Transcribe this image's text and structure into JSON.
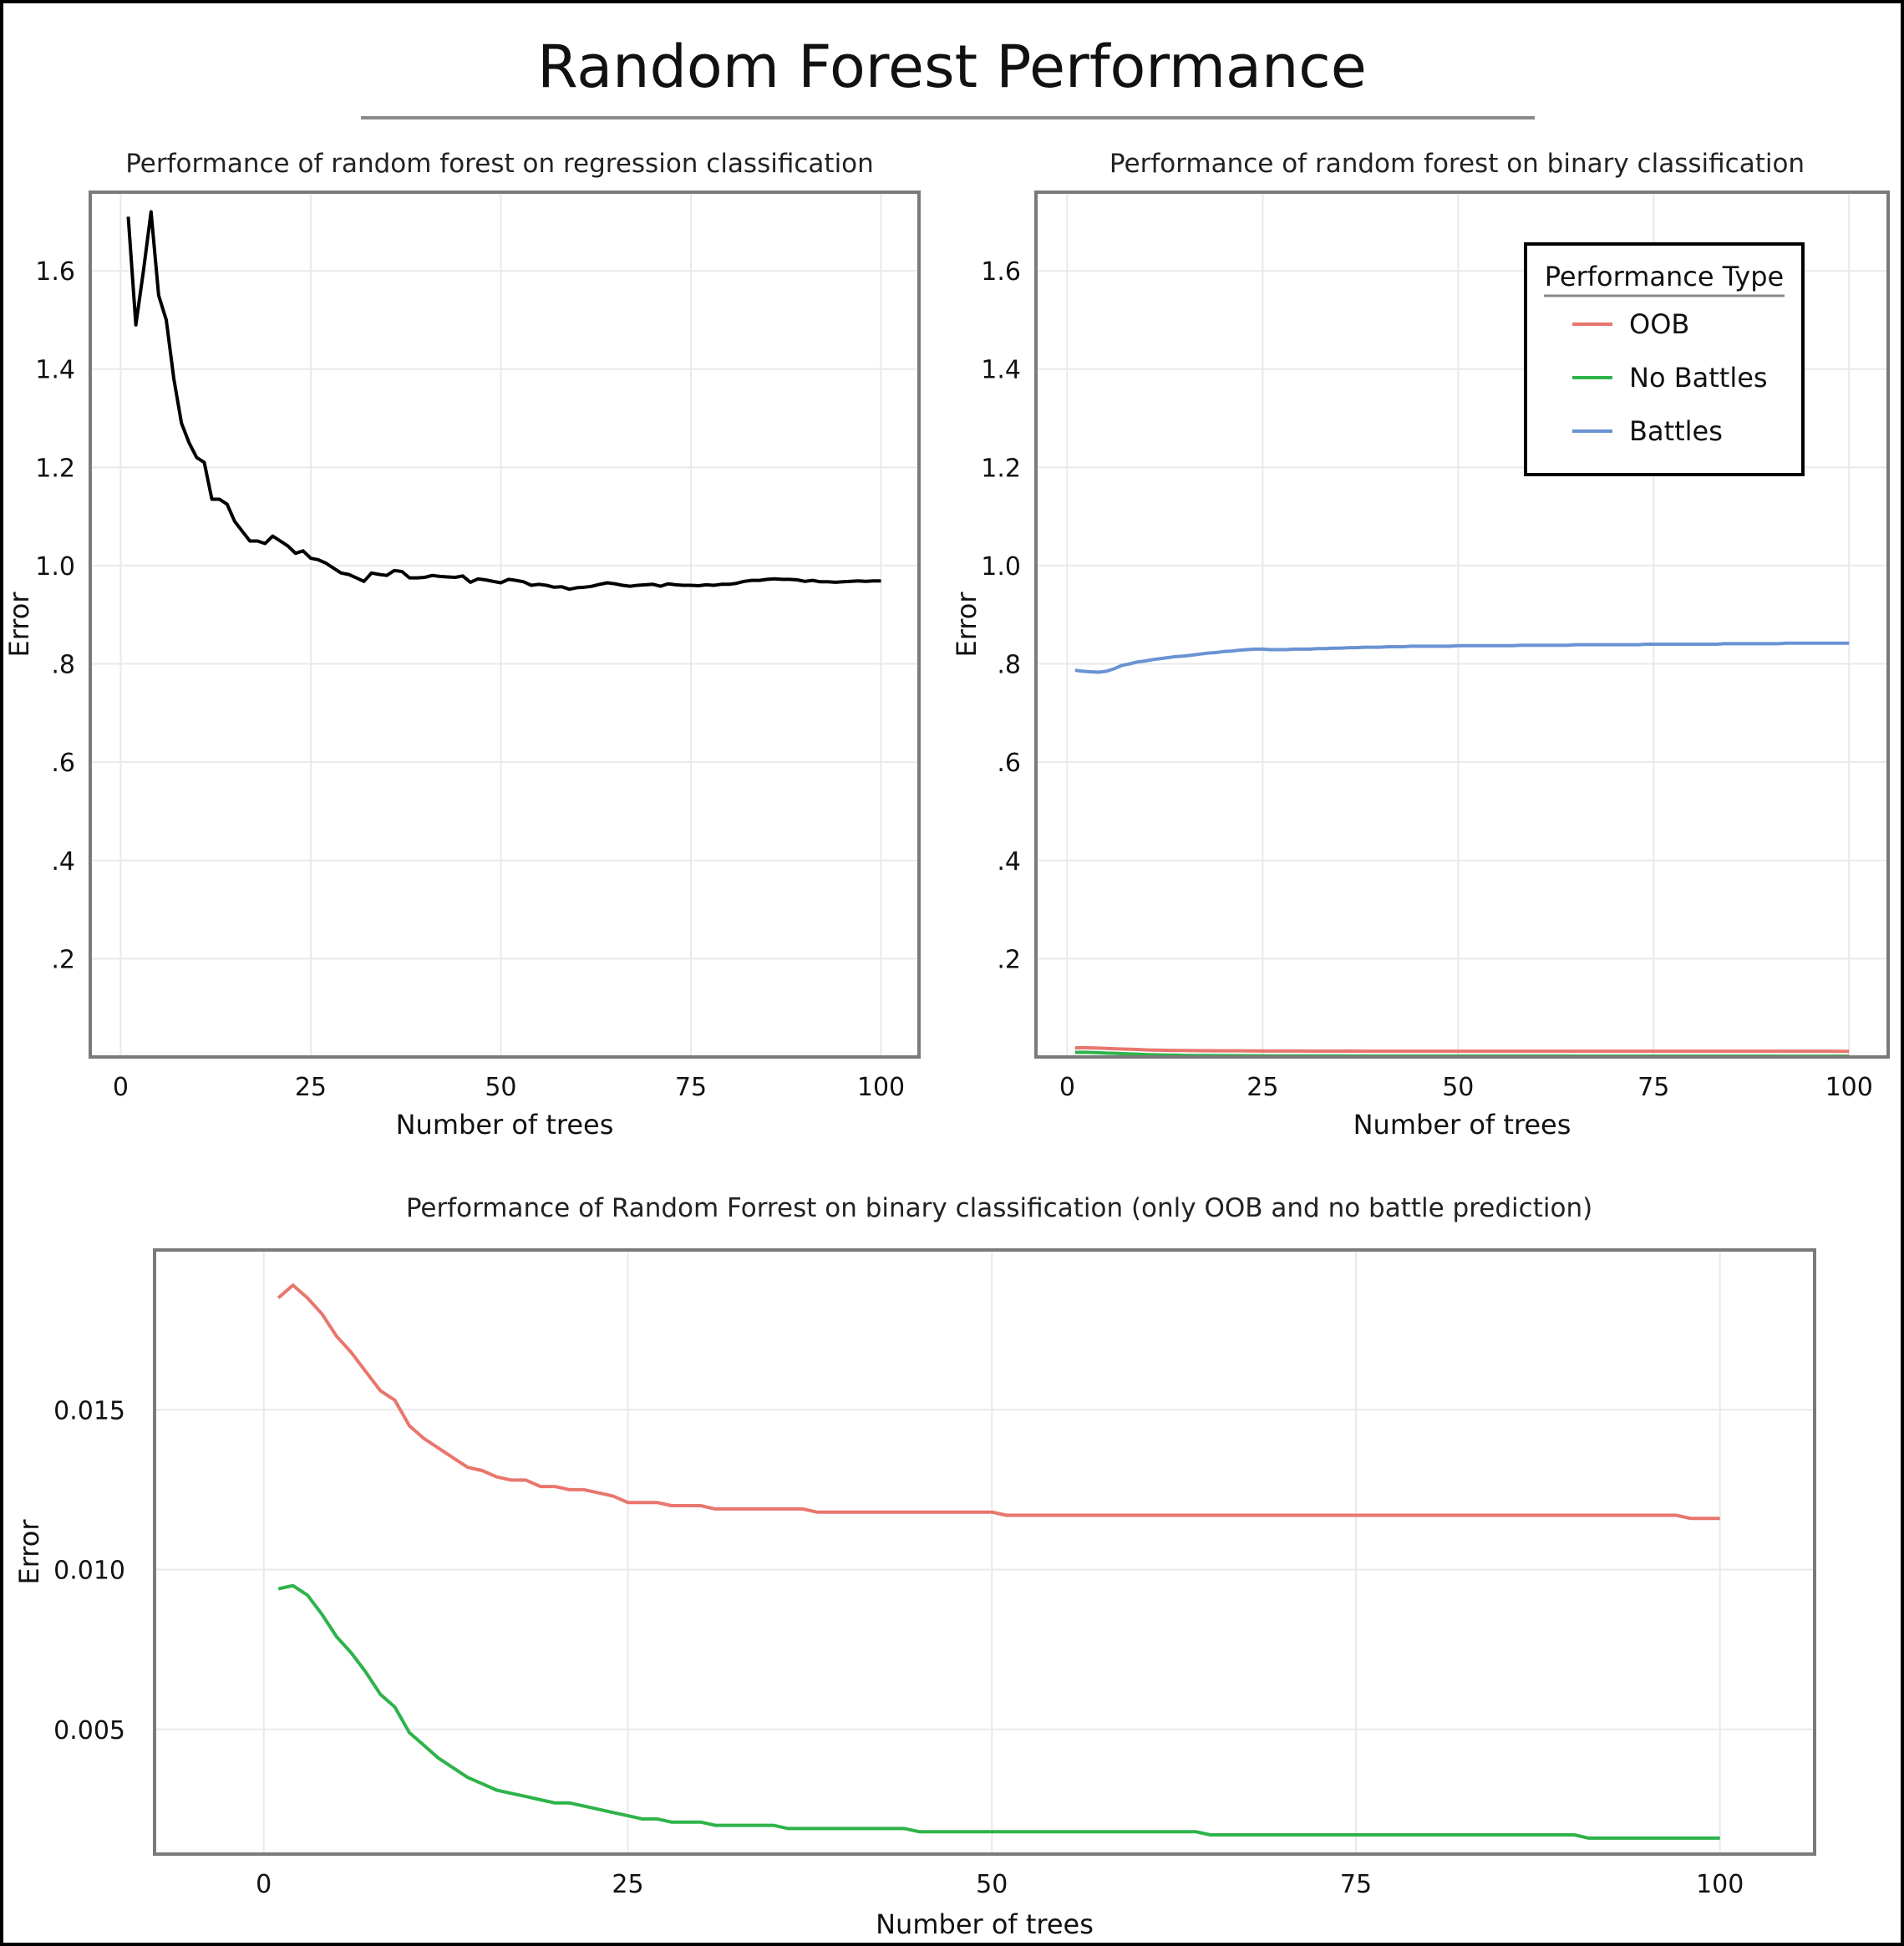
{
  "title": "Random Forest Performance",
  "colors": {
    "regression": "#000000",
    "OOB": "#E8766D",
    "No Battles": "#2EB34A",
    "Battles": "#6A93D4"
  },
  "chart_data": [
    {
      "type": "line",
      "title": "Performance of random forest on regression classification",
      "xlabel": "Number of trees",
      "ylabel": "Error",
      "xlim": [
        -4,
        105
      ],
      "ylim": [
        0,
        1.76
      ],
      "xticks": [
        0,
        25,
        50,
        75,
        100
      ],
      "xticklabels": [
        "0",
        "25",
        "50",
        "75",
        "100"
      ],
      "yticks": [
        0.2,
        0.4,
        0.6,
        0.8,
        1.0,
        1.2,
        1.4,
        1.6
      ],
      "yticklabels": [
        ".2",
        ".4",
        ".6",
        ".8",
        "1.0",
        "1.2",
        "1.4",
        "1.6"
      ],
      "grid": true,
      "series": [
        {
          "color": "#000000",
          "x_start": 1,
          "values": [
            1.71,
            1.49,
            1.6,
            1.72,
            1.55,
            1.5,
            1.38,
            1.29,
            1.25,
            1.22,
            1.21,
            1.135,
            1.135,
            1.125,
            1.09,
            1.07,
            1.05,
            1.05,
            1.045,
            1.06,
            1.05,
            1.04,
            1.025,
            1.03,
            1.015,
            1.012,
            1.005,
            0.995,
            0.985,
            0.982,
            0.975,
            0.968,
            0.985,
            0.982,
            0.98,
            0.99,
            0.988,
            0.975,
            0.975,
            0.976,
            0.98,
            0.978,
            0.977,
            0.976,
            0.979,
            0.966,
            0.973,
            0.971,
            0.968,
            0.965,
            0.972,
            0.97,
            0.967,
            0.96,
            0.962,
            0.96,
            0.956,
            0.957,
            0.952,
            0.955,
            0.956,
            0.958,
            0.962,
            0.965,
            0.963,
            0.96,
            0.958,
            0.96,
            0.961,
            0.962,
            0.958,
            0.963,
            0.961,
            0.96,
            0.96,
            0.959,
            0.961,
            0.96,
            0.962,
            0.962,
            0.964,
            0.968,
            0.97,
            0.97,
            0.972,
            0.973,
            0.972,
            0.972,
            0.971,
            0.968,
            0.97,
            0.967,
            0.967,
            0.966,
            0.967,
            0.968,
            0.969,
            0.968,
            0.969,
            0.969
          ]
        }
      ]
    },
    {
      "type": "line",
      "title": "Performance of random forest on binary classification",
      "xlabel": "Number of trees",
      "ylabel": "Error",
      "xlim": [
        -4,
        105
      ],
      "ylim": [
        0,
        1.76
      ],
      "xticks": [
        0,
        25,
        50,
        75,
        100
      ],
      "xticklabels": [
        "0",
        "25",
        "50",
        "75",
        "100"
      ],
      "yticks": [
        0.2,
        0.4,
        0.6,
        0.8,
        1.0,
        1.2,
        1.4,
        1.6
      ],
      "yticklabels": [
        ".2",
        ".4",
        ".6",
        ".8",
        "1.0",
        "1.2",
        "1.4",
        "1.6"
      ],
      "grid": true,
      "legend": {
        "title": "Performance Type",
        "position": "top-right",
        "entries": [
          "OOB",
          "No Battles",
          "Battles"
        ]
      },
      "series": [
        {
          "name": "OOB",
          "color": "#E8766D",
          "x_start": 1,
          "values": [
            0.0185,
            0.0189,
            0.0185,
            0.018,
            0.0173,
            0.0168,
            0.0162,
            0.0156,
            0.0153,
            0.0145,
            0.0141,
            0.0138,
            0.0135,
            0.0132,
            0.0131,
            0.0129,
            0.0128,
            0.0128,
            0.0126,
            0.0126,
            0.0125,
            0.0125,
            0.0124,
            0.0123,
            0.0121,
            0.0121,
            0.0121,
            0.012,
            0.012,
            0.012,
            0.0119,
            0.0119,
            0.0119,
            0.0119,
            0.0119,
            0.0119,
            0.0119,
            0.0118,
            0.0118,
            0.0118,
            0.0118,
            0.0118,
            0.0118,
            0.0118,
            0.0118,
            0.0118,
            0.0118,
            0.0118,
            0.0118,
            0.0118,
            0.0117,
            0.0117,
            0.0117,
            0.0117,
            0.0117,
            0.0117,
            0.0117,
            0.0117,
            0.0117,
            0.0117,
            0.0117,
            0.0117,
            0.0117,
            0.0117,
            0.0117,
            0.0117,
            0.0117,
            0.0117,
            0.0117,
            0.0117,
            0.0117,
            0.0117,
            0.0117,
            0.0117,
            0.0117,
            0.0117,
            0.0117,
            0.0117,
            0.0117,
            0.0117,
            0.0117,
            0.0117,
            0.0117,
            0.0117,
            0.0117,
            0.0117,
            0.0117,
            0.0117,
            0.0117,
            0.0117,
            0.0117,
            0.0117,
            0.0117,
            0.0117,
            0.0117,
            0.0117,
            0.0117,
            0.0116,
            0.0116,
            0.0116
          ]
        },
        {
          "name": "No Battles",
          "color": "#2EB34A",
          "x_start": 1,
          "values": [
            0.0094,
            0.0095,
            0.0092,
            0.0086,
            0.0079,
            0.0074,
            0.0068,
            0.0061,
            0.0057,
            0.0049,
            0.0045,
            0.0041,
            0.0038,
            0.0035,
            0.0033,
            0.0031,
            0.003,
            0.0029,
            0.0028,
            0.0027,
            0.0027,
            0.0026,
            0.0025,
            0.0024,
            0.0023,
            0.0022,
            0.0022,
            0.0021,
            0.0021,
            0.0021,
            0.002,
            0.002,
            0.002,
            0.002,
            0.002,
            0.0019,
            0.0019,
            0.0019,
            0.0019,
            0.0019,
            0.0019,
            0.0019,
            0.0019,
            0.0019,
            0.0018,
            0.0018,
            0.0018,
            0.0018,
            0.0018,
            0.0018,
            0.0018,
            0.0018,
            0.0018,
            0.0018,
            0.0018,
            0.0018,
            0.0018,
            0.0018,
            0.0018,
            0.0018,
            0.0018,
            0.0018,
            0.0018,
            0.0018,
            0.0017,
            0.0017,
            0.0017,
            0.0017,
            0.0017,
            0.0017,
            0.0017,
            0.0017,
            0.0017,
            0.0017,
            0.0017,
            0.0017,
            0.0017,
            0.0017,
            0.0017,
            0.0017,
            0.0017,
            0.0017,
            0.0017,
            0.0017,
            0.0017,
            0.0017,
            0.0017,
            0.0017,
            0.0017,
            0.0017,
            0.0016,
            0.0016,
            0.0016,
            0.0016,
            0.0016,
            0.0016,
            0.0016,
            0.0016,
            0.0016,
            0.0016
          ]
        },
        {
          "name": "Battles",
          "color": "#6A93D4",
          "x_start": 1,
          "values": [
            0.787,
            0.785,
            0.784,
            0.783,
            0.785,
            0.79,
            0.797,
            0.8,
            0.804,
            0.806,
            0.809,
            0.811,
            0.813,
            0.815,
            0.816,
            0.818,
            0.82,
            0.822,
            0.823,
            0.825,
            0.826,
            0.828,
            0.829,
            0.83,
            0.83,
            0.829,
            0.829,
            0.829,
            0.83,
            0.83,
            0.83,
            0.831,
            0.831,
            0.832,
            0.832,
            0.833,
            0.833,
            0.834,
            0.834,
            0.834,
            0.835,
            0.835,
            0.835,
            0.836,
            0.836,
            0.836,
            0.836,
            0.836,
            0.836,
            0.837,
            0.837,
            0.837,
            0.837,
            0.837,
            0.837,
            0.837,
            0.837,
            0.838,
            0.838,
            0.838,
            0.838,
            0.838,
            0.838,
            0.838,
            0.839,
            0.839,
            0.839,
            0.839,
            0.839,
            0.839,
            0.839,
            0.839,
            0.839,
            0.84,
            0.84,
            0.84,
            0.84,
            0.84,
            0.84,
            0.84,
            0.84,
            0.84,
            0.84,
            0.841,
            0.841,
            0.841,
            0.841,
            0.841,
            0.841,
            0.841,
            0.841,
            0.842,
            0.842,
            0.842,
            0.842,
            0.842,
            0.842,
            0.842,
            0.842,
            0.842
          ]
        }
      ]
    },
    {
      "type": "line",
      "title": "Performance of Random Forrest on binary classification (only OOB and no battle prediction)",
      "xlabel": "Number of trees",
      "ylabel": "Error",
      "xlim": [
        -7.5,
        106.5
      ],
      "ylim": [
        0.0011,
        0.02
      ],
      "xticks": [
        0,
        25,
        50,
        75,
        100
      ],
      "xticklabels": [
        "0",
        "25",
        "50",
        "75",
        "100"
      ],
      "yticks": [
        0.005,
        0.01,
        0.015
      ],
      "yticklabels": [
        "0.005",
        "0.010",
        "0.015"
      ],
      "grid": true,
      "series": [
        {
          "name": "OOB",
          "color": "#E8766D",
          "x_start": 1,
          "ref": "OOB"
        },
        {
          "name": "No Battles",
          "color": "#2EB34A",
          "x_start": 1,
          "ref": "No Battles"
        }
      ]
    }
  ]
}
